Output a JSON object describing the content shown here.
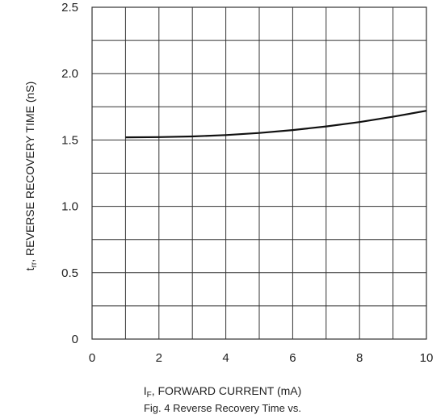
{
  "chart_data": {
    "type": "line",
    "x": [
      1,
      2,
      3,
      4,
      5,
      6,
      7,
      8,
      9,
      10
    ],
    "series": [
      {
        "values": [
          1.52,
          1.522,
          1.527,
          1.537,
          1.553,
          1.575,
          1.602,
          1.635,
          1.675,
          1.72
        ]
      }
    ],
    "xlim": [
      0,
      10
    ],
    "ylim": [
      0,
      2.5
    ],
    "xticks": [
      0,
      1,
      2,
      3,
      4,
      5,
      6,
      7,
      8,
      9,
      10
    ],
    "yticks": [
      0,
      0.25,
      0.5,
      0.75,
      1.0,
      1.25,
      1.5,
      1.75,
      2.0,
      2.25,
      2.5
    ],
    "xtick_labels": [
      "0",
      "2",
      "4",
      "6",
      "8",
      "10"
    ],
    "ytick_labels": [
      "0",
      "0.5",
      "1.0",
      "1.5",
      "2.0",
      "2.5"
    ],
    "ylabel_main": "t",
    "ylabel_sub": "rr",
    "ylabel_rest": ", REVERSE RECOVERY TIME (nS)",
    "xlabel_main": "I",
    "xlabel_sub": "F",
    "xlabel_rest": ", FORWARD CURRENT (mA)",
    "caption": "Fig. 4  Reverse Recovery Time vs.",
    "grid": true,
    "line_color": "#111111",
    "grid_color": "#333333"
  }
}
